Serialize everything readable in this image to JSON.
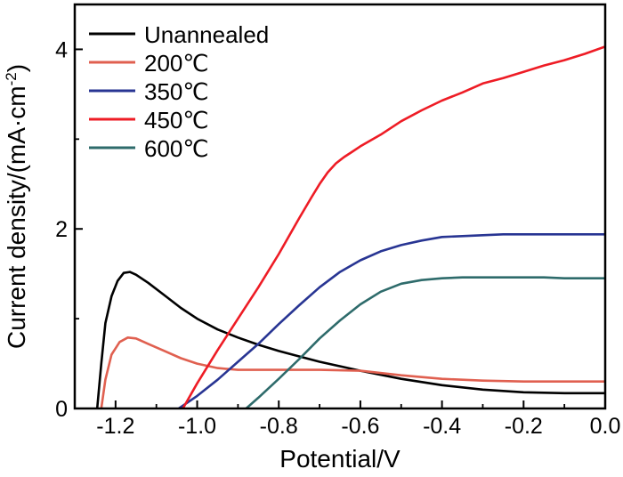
{
  "chart_data": {
    "type": "line",
    "title": "",
    "xlabel": "Potential/V",
    "ylabel": "Current density/(mA·cm",
    "ylabel_sup": "-2",
    "ylabel_close": ")",
    "xlim": [
      -1.3,
      0.0
    ],
    "ylim": [
      0,
      4.5
    ],
    "xticks": [
      -1.2,
      -1.0,
      -0.8,
      -0.6,
      -0.4,
      -0.2,
      0.0
    ],
    "xtick_labels": [
      "-1.2",
      "-1.0",
      "-0.8",
      "-0.6",
      "-0.4",
      "-0.2",
      "0.0"
    ],
    "yticks": [
      0,
      2,
      4
    ],
    "ytick_labels": [
      "0",
      "2",
      "4"
    ],
    "grid": false,
    "legend_position": "top-left",
    "series": [
      {
        "name": "Unannealed",
        "color": "#000000",
        "x": [
          -1.245,
          -1.235,
          -1.225,
          -1.21,
          -1.195,
          -1.18,
          -1.165,
          -1.15,
          -1.12,
          -1.08,
          -1.04,
          -1.0,
          -0.95,
          -0.9,
          -0.85,
          -0.8,
          -0.75,
          -0.7,
          -0.6,
          -0.5,
          -0.4,
          -0.3,
          -0.2,
          -0.1,
          0.0
        ],
        "y": [
          0.0,
          0.5,
          0.95,
          1.25,
          1.42,
          1.51,
          1.52,
          1.49,
          1.4,
          1.26,
          1.12,
          1.0,
          0.88,
          0.79,
          0.71,
          0.64,
          0.58,
          0.52,
          0.42,
          0.33,
          0.26,
          0.21,
          0.18,
          0.17,
          0.17
        ]
      },
      {
        "name": "200℃",
        "color": "#e06050",
        "x": [
          -1.235,
          -1.225,
          -1.21,
          -1.19,
          -1.17,
          -1.15,
          -1.12,
          -1.08,
          -1.04,
          -1.0,
          -0.95,
          -0.9,
          -0.85,
          -0.8,
          -0.7,
          -0.6,
          -0.5,
          -0.4,
          -0.3,
          -0.2,
          -0.1,
          0.0
        ],
        "y": [
          0.0,
          0.32,
          0.6,
          0.74,
          0.79,
          0.78,
          0.72,
          0.64,
          0.56,
          0.5,
          0.45,
          0.43,
          0.43,
          0.43,
          0.43,
          0.42,
          0.37,
          0.33,
          0.31,
          0.3,
          0.3,
          0.3
        ]
      },
      {
        "name": "350℃",
        "color": "#283593",
        "x": [
          -1.045,
          -1.0,
          -0.95,
          -0.9,
          -0.85,
          -0.8,
          -0.75,
          -0.7,
          -0.65,
          -0.6,
          -0.55,
          -0.5,
          -0.45,
          -0.4,
          -0.35,
          -0.3,
          -0.25,
          -0.2,
          -0.15,
          -0.1,
          -0.05,
          0.0
        ],
        "y": [
          0.0,
          0.14,
          0.32,
          0.52,
          0.72,
          0.94,
          1.15,
          1.35,
          1.52,
          1.65,
          1.75,
          1.82,
          1.87,
          1.91,
          1.92,
          1.93,
          1.94,
          1.94,
          1.94,
          1.94,
          1.94,
          1.94
        ]
      },
      {
        "name": "450℃",
        "color": "#ee1c25",
        "x": [
          -1.035,
          -1.0,
          -0.95,
          -0.9,
          -0.85,
          -0.8,
          -0.75,
          -0.72,
          -0.7,
          -0.68,
          -0.66,
          -0.64,
          -0.62,
          -0.6,
          -0.55,
          -0.5,
          -0.45,
          -0.4,
          -0.35,
          -0.3,
          -0.25,
          -0.2,
          -0.15,
          -0.1,
          -0.05,
          0.0
        ],
        "y": [
          0.0,
          0.28,
          0.65,
          1.0,
          1.35,
          1.72,
          2.12,
          2.35,
          2.5,
          2.63,
          2.73,
          2.8,
          2.86,
          2.92,
          3.05,
          3.2,
          3.32,
          3.43,
          3.52,
          3.62,
          3.68,
          3.75,
          3.82,
          3.88,
          3.95,
          4.03
        ]
      },
      {
        "name": "600℃",
        "color": "#2e6b6b",
        "x": [
          -0.88,
          -0.85,
          -0.8,
          -0.75,
          -0.7,
          -0.65,
          -0.6,
          -0.55,
          -0.5,
          -0.45,
          -0.4,
          -0.35,
          -0.3,
          -0.25,
          -0.2,
          -0.15,
          -0.1,
          -0.05,
          0.0
        ],
        "y": [
          0.0,
          0.12,
          0.33,
          0.55,
          0.78,
          0.98,
          1.16,
          1.3,
          1.39,
          1.43,
          1.45,
          1.46,
          1.46,
          1.46,
          1.46,
          1.46,
          1.45,
          1.45,
          1.45
        ]
      }
    ]
  }
}
